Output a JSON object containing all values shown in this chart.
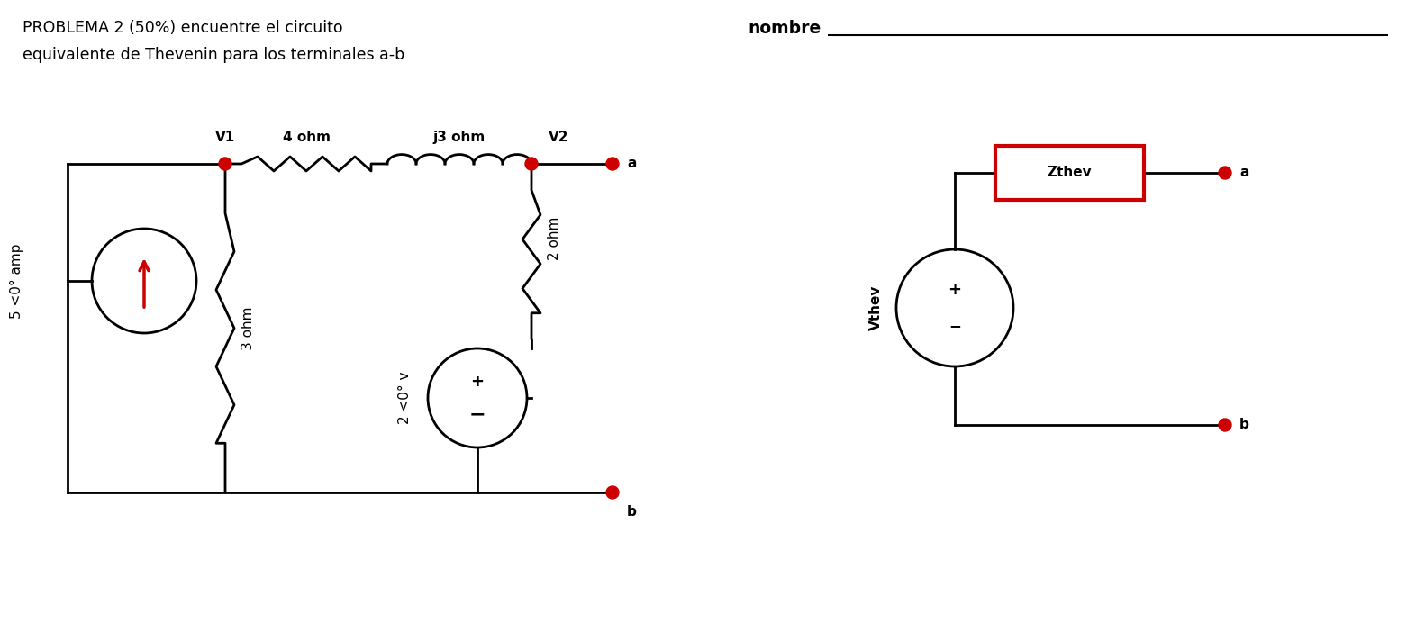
{
  "title_line1": "PROBLEMA 2 (50%) encuentre el circuito",
  "title_line2": "equivalente de Thevenin para los terminales a-b",
  "nombre_label": "nombre",
  "background_color": "#ffffff",
  "wire_color": "#000000",
  "component_color": "#000000",
  "dot_color": "#cc0000",
  "box_color": "#cc0000",
  "text_color": "#000000",
  "title_fontsize": 12.5,
  "label_fontsize": 11,
  "cs_label": "5 <0° amp",
  "vs_label": "2 <0° v",
  "r1_label": "3 ohm",
  "r2_label": "4 ohm",
  "r3_label": "j3 ohm",
  "r4_label": "2 ohm",
  "v1_label": "V1",
  "v2_label": "V2",
  "a_label": "a",
  "b_label": "b",
  "vthev_label": "Vthev",
  "zthev_label": "Zthev",
  "plus_sign": "+",
  "minus_sign": "−"
}
